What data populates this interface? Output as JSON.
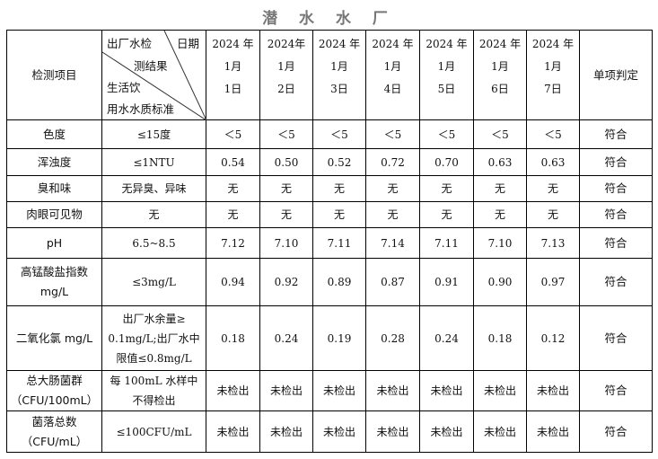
{
  "title": "潜 水 水 厂",
  "header": {
    "item": "检测项目",
    "diag_top_left": "出厂水检",
    "diag_top_right": "日期",
    "diag_mid": "测结果",
    "diag_bottom1": "生活饮",
    "diag_bottom2": "用水水质标准",
    "verdict": "单项判定",
    "dates": [
      [
        "2024 年",
        "1月",
        "1日"
      ],
      [
        "2024年",
        "1月",
        "2日"
      ],
      [
        "2024 年",
        "1月",
        "3日"
      ],
      [
        "2024 年",
        "1月",
        "4日"
      ],
      [
        "2024 年",
        "1月",
        "5日"
      ],
      [
        "2024 年",
        "1月",
        "6日"
      ],
      [
        "2024 年",
        "1月",
        "7日"
      ]
    ]
  },
  "rows": [
    {
      "item": [
        "色度"
      ],
      "standard": [
        "≤15度"
      ],
      "values": [
        "＜5",
        "＜5",
        "＜5",
        "＜5",
        "＜5",
        "＜5",
        "＜5"
      ],
      "verdict": "符合"
    },
    {
      "item": [
        "浑浊度"
      ],
      "standard": [
        "≤1NTU"
      ],
      "values": [
        "0.54",
        "0.50",
        "0.52",
        "0.72",
        "0.70",
        "0.63",
        "0.63"
      ],
      "verdict": "符合"
    },
    {
      "item": [
        "臭和味"
      ],
      "standard": [
        "无异臭、异味"
      ],
      "values": [
        "无",
        "无",
        "无",
        "无",
        "无",
        "无",
        "无"
      ],
      "verdict": "符合"
    },
    {
      "item": [
        "肉眼可见物"
      ],
      "standard": [
        "无"
      ],
      "values": [
        "无",
        "无",
        "无",
        "无",
        "无",
        "无",
        "无"
      ],
      "verdict": "符合"
    },
    {
      "item": [
        "pH"
      ],
      "standard": [
        "6.5~8.5"
      ],
      "values": [
        "7.12",
        "7.10",
        "7.11",
        "7.14",
        "7.11",
        "7.10",
        "7.13"
      ],
      "verdict": "符合"
    },
    {
      "item": [
        "高锰酸盐指数",
        "mg/L"
      ],
      "standard": [
        "≤3mg/L"
      ],
      "values": [
        "0.94",
        "0.92",
        "0.89",
        "0.87",
        "0.91",
        "0.90",
        "0.97"
      ],
      "verdict": "符合"
    },
    {
      "item": [
        "二氧化氯 mg/L"
      ],
      "standard": [
        "出厂水余量≥",
        "0.1mg/L;出厂水中",
        "限值≤0.8mg/L"
      ],
      "values": [
        "0.18",
        "0.24",
        "0.19",
        "0.28",
        "0.24",
        "0.18",
        "0.12"
      ],
      "verdict": "符合"
    },
    {
      "item": [
        "总大肠菌群",
        "（CFU/100mL）"
      ],
      "standard": [
        "每 100mL 水样中",
        "不得检出"
      ],
      "values": [
        "未检出",
        "未检出",
        "未检出",
        "未检出",
        "未检出",
        "未检出",
        "未检出"
      ],
      "verdict": "符合"
    },
    {
      "item": [
        "菌落总数",
        "（CFU/mL）"
      ],
      "standard": [
        "≤100CFU/mL"
      ],
      "values": [
        "未检出",
        "未检出",
        "未检出",
        "未检出",
        "未检出",
        "未检出",
        "未检出"
      ],
      "verdict": "符合"
    }
  ]
}
